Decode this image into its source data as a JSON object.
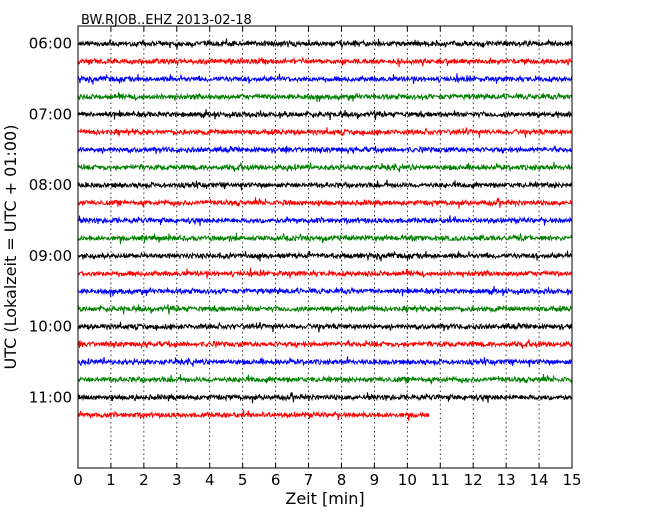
{
  "chart_data": {
    "type": "line",
    "title": "BW.RJOB..EHZ 2013-02-18",
    "xlabel": "Zeit  [min]",
    "ylabel": "UTC (Lokalzeit = UTC + 01:00)",
    "xlim": [
      0,
      15
    ],
    "x_ticks": [
      "0",
      "1",
      "2",
      "3",
      "4",
      "5",
      "6",
      "7",
      "8",
      "9",
      "10",
      "11",
      "12",
      "13",
      "14",
      "15"
    ],
    "y_ticks": [
      "06:00",
      "07:00",
      "08:00",
      "09:00",
      "10:00",
      "11:00"
    ],
    "grid": "vertical dotted",
    "series_colors": [
      "#000000",
      "#ff0000",
      "#0000ff",
      "#008000"
    ],
    "series": [
      {
        "start": "06:00",
        "duration_min": 15,
        "color": "#000000"
      },
      {
        "start": "06:15",
        "duration_min": 15,
        "color": "#ff0000"
      },
      {
        "start": "06:30",
        "duration_min": 15,
        "color": "#0000ff"
      },
      {
        "start": "06:45",
        "duration_min": 15,
        "color": "#008000"
      },
      {
        "start": "07:00",
        "duration_min": 15,
        "color": "#000000"
      },
      {
        "start": "07:15",
        "duration_min": 15,
        "color": "#ff0000"
      },
      {
        "start": "07:30",
        "duration_min": 15,
        "color": "#0000ff"
      },
      {
        "start": "07:45",
        "duration_min": 15,
        "color": "#008000"
      },
      {
        "start": "08:00",
        "duration_min": 15,
        "color": "#000000"
      },
      {
        "start": "08:15",
        "duration_min": 15,
        "color": "#ff0000"
      },
      {
        "start": "08:30",
        "duration_min": 15,
        "color": "#0000ff"
      },
      {
        "start": "08:45",
        "duration_min": 15,
        "color": "#008000"
      },
      {
        "start": "09:00",
        "duration_min": 15,
        "color": "#000000"
      },
      {
        "start": "09:15",
        "duration_min": 15,
        "color": "#ff0000"
      },
      {
        "start": "09:30",
        "duration_min": 15,
        "color": "#0000ff"
      },
      {
        "start": "09:45",
        "duration_min": 15,
        "color": "#008000"
      },
      {
        "start": "10:00",
        "duration_min": 15,
        "color": "#000000"
      },
      {
        "start": "10:15",
        "duration_min": 15,
        "color": "#ff0000"
      },
      {
        "start": "10:30",
        "duration_min": 15,
        "color": "#0000ff"
      },
      {
        "start": "10:45",
        "duration_min": 15,
        "color": "#008000"
      },
      {
        "start": "11:00",
        "duration_min": 15,
        "color": "#000000"
      },
      {
        "start": "11:15",
        "duration_min": 10.65,
        "color": "#ff0000"
      }
    ],
    "y_range": [
      "05:45",
      "12:00"
    ]
  }
}
